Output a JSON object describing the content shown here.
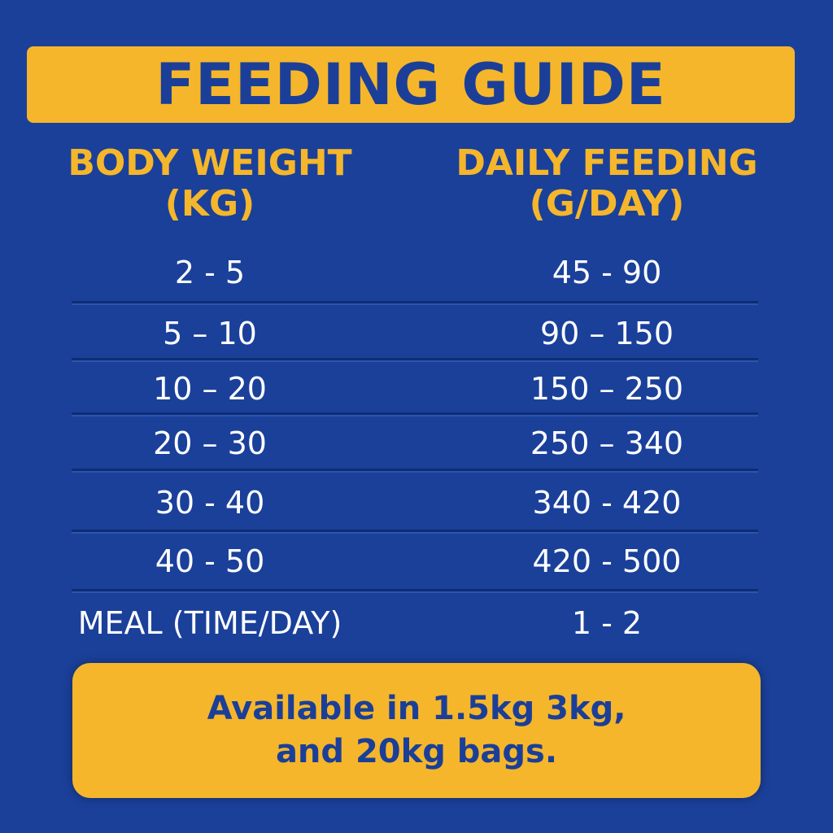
{
  "title": "FEEDING GUIDE",
  "headers": {
    "weight": [
      "BODY WEIGHT",
      "(KG)"
    ],
    "feeding": [
      "DAILY FEEDING",
      "(G/DAY)"
    ]
  },
  "rows": [
    {
      "weight": "2 - 5",
      "feeding": "45 - 90"
    },
    {
      "weight": "5 – 10",
      "feeding": "90 – 150"
    },
    {
      "weight": "10 – 20",
      "feeding": "150 – 250"
    },
    {
      "weight": "20 – 30",
      "feeding": "250 – 340"
    },
    {
      "weight": "30 - 40",
      "feeding": "340 - 420"
    },
    {
      "weight": "40 - 50",
      "feeding": "420 - 500"
    },
    {
      "weight": "MEAL (TIME/DAY)",
      "feeding": "1 - 2"
    }
  ],
  "availability": [
    "Available in 1.5kg 3kg,",
    "and 20kg bags."
  ],
  "colors": {
    "background": "#1a409a",
    "accent": "#f5b62b",
    "title_text": "#1b3f98"
  }
}
